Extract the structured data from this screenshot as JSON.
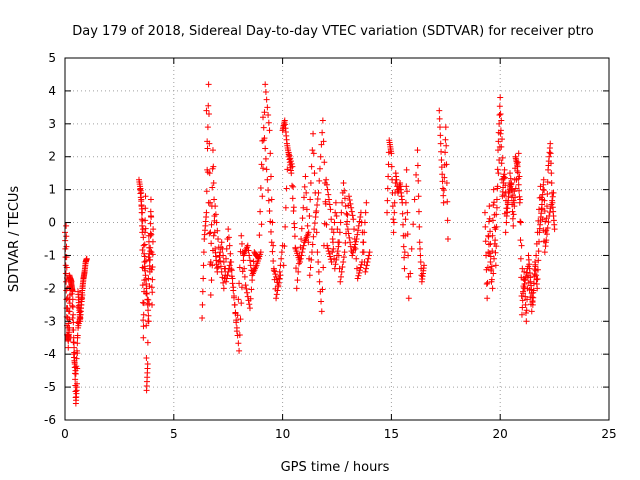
{
  "chart_data": {
    "type": "scatter",
    "title": "Day 179 of 2018, Sidereal Day-to-day VTEC variation (SDTVAR) for receiver ptro",
    "xlabel": "GPS time / hours",
    "ylabel": "SDTVAR / TECUs",
    "xlim": [
      0,
      25
    ],
    "ylim": [
      -6,
      5
    ],
    "xticks": [
      0,
      5,
      10,
      15,
      20,
      25
    ],
    "yticks": [
      -6,
      -5,
      -4,
      -3,
      -2,
      -1,
      0,
      1,
      2,
      3,
      4,
      5
    ],
    "grid": true,
    "marker": "+",
    "color": "#ff0000",
    "series": [
      {
        "name": "SDTVAR",
        "segments": [
          {
            "x": [
              0.0,
              0.05,
              0.1,
              0.15,
              0.2,
              0.25,
              0.3,
              0.35,
              0.4,
              0.45,
              0.5,
              0.55,
              0.6,
              0.65,
              0.7,
              0.75,
              0.8,
              0.85,
              0.9,
              0.95,
              1.0
            ],
            "y": [
              -0.3,
              -1.8,
              -3.4,
              -3.6,
              -3.2,
              -1.7,
              -1.9,
              -2.1,
              -3.5,
              -4.4,
              -5.5,
              -4.9,
              -2.1,
              -2.6,
              -3.0,
              -2.4,
              -2.0,
              -1.7,
              -1.5,
              -1.2,
              -1.1
            ]
          },
          {
            "x": [
              0.05,
              0.1,
              0.15,
              0.2,
              0.3,
              0.4,
              0.5,
              0.6,
              0.7,
              0.8
            ],
            "y": [
              -0.1,
              -2.0,
              -3.8,
              -1.6,
              -1.8,
              -4.0,
              -4.6,
              -3.2,
              -2.8,
              -2.2
            ]
          },
          {
            "x": [
              3.4,
              3.5,
              3.55,
              3.6,
              3.65,
              3.7,
              3.75,
              3.8,
              3.85,
              3.9,
              3.95,
              4.0,
              4.05
            ],
            "y": [
              1.3,
              0.9,
              -0.3,
              -3.5,
              -1.4,
              0.8,
              -5.1,
              -4.3,
              -0.4,
              -1.5,
              0.7,
              -2.5,
              -0.2
            ]
          },
          {
            "x": [
              3.45,
              3.55,
              3.65,
              3.75,
              3.85,
              3.95
            ],
            "y": [
              1.0,
              0.3,
              -1.2,
              -2.0,
              -3.0,
              0.2
            ]
          },
          {
            "x": [
              6.3,
              6.4,
              6.5,
              6.6,
              6.7,
              6.8,
              6.9,
              7.0,
              7.2,
              7.4,
              7.6,
              7.8,
              8.0,
              8.2,
              8.4,
              8.6,
              8.8,
              9.0,
              9.2,
              9.4,
              9.6,
              9.8,
              10.0
            ],
            "y": [
              -2.9,
              -0.5,
              0.3,
              4.2,
              -1.2,
              2.2,
              -0.8,
              -1.5,
              -0.6,
              -1.8,
              -1.2,
              -2.5,
              -3.9,
              -1.0,
              -0.7,
              -1.6,
              -1.3,
              -0.9,
              4.2,
              2.8,
              -1.4,
              -1.9,
              -0.7
            ]
          },
          {
            "x": [
              6.5,
              6.7,
              6.9,
              7.1,
              7.3,
              7.5,
              7.7,
              7.9,
              8.1,
              8.3,
              8.5,
              8.7,
              8.9,
              9.1,
              9.3,
              9.5,
              9.7,
              9.9
            ],
            "y": [
              3.4,
              -2.2,
              0.5,
              -1.0,
              -2.0,
              -0.2,
              -1.7,
              -3.3,
              -0.4,
              -1.9,
              -2.6,
              -0.9,
              -1.1,
              3.2,
              1.3,
              -0.6,
              -2.3,
              -1.6
            ]
          },
          {
            "x": [
              10.0,
              10.1,
              10.2,
              10.3,
              10.4,
              10.6,
              10.8,
              11.0,
              11.2,
              11.4,
              11.6,
              11.8,
              12.0,
              12.2,
              12.4,
              12.6,
              12.8,
              13.0,
              13.2,
              13.4,
              13.6,
              13.8,
              14.0
            ],
            "y": [
              2.8,
              3.1,
              2.4,
              2.0,
              1.5,
              -0.8,
              -1.2,
              -0.6,
              -0.3,
              2.7,
              -0.9,
              -2.7,
              1.3,
              0.4,
              -1.4,
              -0.6,
              1.2,
              -0.2,
              -1.0,
              -0.5,
              0.3,
              -1.5,
              -0.9
            ]
          },
          {
            "x": [
              10.05,
              10.25,
              10.45,
              10.65,
              10.85,
              11.05,
              11.25,
              11.45,
              11.65,
              11.85,
              12.05,
              12.25,
              12.45,
              12.65,
              12.85,
              13.05,
              13.25,
              13.45,
              13.65,
              13.85
            ],
            "y": [
              -1.3,
              2.2,
              1.7,
              -2.0,
              -0.5,
              1.4,
              -1.6,
              -0.2,
              0.9,
              3.1,
              -0.7,
              -1.2,
              0.6,
              -1.8,
              -0.9,
              0.8,
              0.1,
              -1.7,
              -1.2,
              0.6
            ]
          },
          {
            "x": [
              14.8,
              14.9,
              15.0,
              15.1,
              15.2,
              15.3,
              15.4,
              15.5,
              15.6,
              15.7,
              15.8,
              16.2,
              16.3,
              16.4,
              16.5
            ],
            "y": [
              0.3,
              2.5,
              2.1,
              -0.3,
              1.5,
              0.9,
              1.2,
              0.6,
              -1.4,
              1.6,
              -2.3,
              2.2,
              -0.6,
              -1.8,
              -1.3
            ]
          },
          {
            "x": [
              17.2,
              17.3,
              17.4,
              17.5,
              17.6
            ],
            "y": [
              3.4,
              1.9,
              0.6,
              2.9,
              -0.5
            ]
          },
          {
            "x": [
              19.3,
              19.4,
              19.5,
              19.6,
              19.7,
              19.8,
              19.9,
              20.0,
              20.1,
              20.2,
              20.3,
              20.4,
              20.5,
              20.6,
              20.7,
              20.8,
              20.9,
              21.0,
              21.1,
              21.2,
              21.3,
              21.4,
              21.5,
              21.6,
              21.7,
              21.8,
              21.9,
              22.0,
              22.1,
              22.2,
              22.3,
              22.4,
              22.5
            ],
            "y": [
              0.3,
              -2.3,
              0.5,
              -1.8,
              1.0,
              -1.3,
              2.2,
              3.8,
              0.8,
              1.6,
              0.2,
              0.9,
              1.2,
              -0.1,
              2.0,
              1.7,
              0.6,
              -2.8,
              -1.5,
              -3.0,
              -1.0,
              -1.8,
              -2.5,
              -1.2,
              -2.0,
              -0.3,
              0.4,
              1.3,
              -0.6,
              1.6,
              2.4,
              0.6,
              -0.2
            ]
          },
          {
            "x": [
              19.45,
              19.65,
              19.85,
              20.05,
              20.25,
              20.45,
              20.65,
              20.85,
              21.05,
              21.25,
              21.45,
              21.65,
              21.85,
              22.05,
              22.25,
              22.45
            ],
            "y": [
              -0.4,
              -2.0,
              0.7,
              3.1,
              -0.3,
              1.5,
              0.5,
              2.1,
              -2.1,
              -1.4,
              -2.7,
              -1.0,
              1.1,
              -0.9,
              0.2,
              0.9
            ]
          }
        ]
      }
    ]
  }
}
